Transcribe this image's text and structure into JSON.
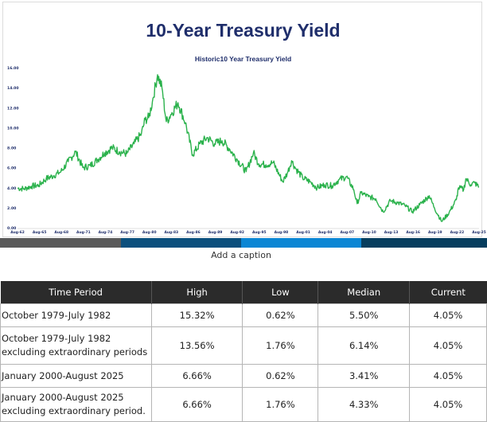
{
  "chart_data": {
    "type": "line",
    "title": "10-Year Treasury Yield",
    "subtitle": "Historic10 Year Treasury Yield",
    "yticks": [
      "0.00",
      "2.00",
      "4.00",
      "6.00",
      "8.00",
      "10.00",
      "12.00",
      "14.00",
      "16.00"
    ],
    "ylim": [
      0,
      16
    ],
    "xticks": [
      "Aug-62",
      "Aug-65",
      "Aug-68",
      "Aug-71",
      "Aug-74",
      "Aug-77",
      "Aug-80",
      "Aug-83",
      "Aug-86",
      "Aug-89",
      "Aug-92",
      "Aug-95",
      "Aug-98",
      "Aug-01",
      "Aug-04",
      "Aug-07",
      "Aug-10",
      "Aug-13",
      "Aug-16",
      "Aug-19",
      "Aug-22",
      "Aug-25"
    ],
    "xlim": [
      1962.58,
      2025.6
    ],
    "grid": false,
    "legend": "none",
    "line_color": "#2bb24c",
    "series": [
      {
        "x": [
          1962.58,
          1963.5,
          1964.5,
          1965.5,
          1966.5,
          1967.5,
          1968.5,
          1969.5,
          1970.5,
          1971.5,
          1972.5,
          1973.5,
          1974.5,
          1975.5,
          1976.5,
          1977.5,
          1978.5,
          1979.5,
          1980.0,
          1980.5,
          1981.0,
          1981.7,
          1982.3,
          1982.9,
          1983.5,
          1984.5,
          1985.5,
          1986.5,
          1987.5,
          1988.5,
          1989.5,
          1990.5,
          1991.5,
          1992.5,
          1993.8,
          1994.8,
          1995.5,
          1996.5,
          1997.5,
          1998.8,
          1999.5,
          2000.0,
          2000.5,
          2001.5,
          2002.5,
          2003.5,
          2004.5,
          2005.5,
          2006.5,
          2007.5,
          2008.5,
          2008.95,
          2009.5,
          2010.5,
          2011.5,
          2012.5,
          2013.5,
          2014.5,
          2015.5,
          2016.5,
          2017.5,
          2018.8,
          2019.5,
          2020.5,
          2021.5,
          2022.5,
          2022.8,
          2023.5,
          2023.8,
          2024.5,
          2025.0,
          2025.6
        ],
        "y": [
          3.95,
          3.9,
          4.15,
          4.25,
          4.9,
          5.2,
          5.6,
          6.6,
          7.6,
          6.0,
          6.2,
          6.8,
          7.5,
          8.0,
          7.6,
          7.4,
          8.4,
          9.4,
          10.8,
          11.0,
          12.6,
          15.3,
          14.0,
          10.6,
          11.3,
          12.5,
          10.5,
          7.3,
          8.4,
          9.0,
          8.4,
          8.7,
          7.9,
          6.9,
          5.6,
          7.5,
          6.4,
          6.3,
          6.5,
          4.6,
          5.6,
          6.7,
          6.0,
          5.0,
          4.6,
          4.0,
          4.3,
          4.2,
          4.8,
          5.1,
          3.8,
          2.4,
          3.5,
          3.1,
          2.9,
          1.6,
          2.7,
          2.5,
          2.2,
          1.6,
          2.3,
          3.2,
          2.0,
          0.62,
          1.5,
          2.8,
          4.0,
          3.8,
          4.9,
          4.3,
          4.5,
          4.05
        ]
      }
    ]
  },
  "color_bar": [
    {
      "label": "",
      "color": "#5a5a5a"
    },
    {
      "label": "",
      "color": "#0b4f7d"
    },
    {
      "label": "",
      "color": "#0b86d4"
    },
    {
      "label": "",
      "color": "#063d5e"
    }
  ],
  "caption": "Add a caption",
  "table": {
    "headers": [
      "Time Period",
      "High",
      "Low",
      "Median",
      "Current"
    ],
    "rows": [
      {
        "period": "October 1979-July 1982",
        "period_line2": "",
        "high": "15.32%",
        "low": "0.62%",
        "median": "5.50%",
        "current": "4.05%"
      },
      {
        "period": "October 1979-July 1982",
        "period_line2": "excluding extraordinary periods",
        "high": "13.56%",
        "low": "1.76%",
        "median": "6.14%",
        "current": "4.05%"
      },
      {
        "period": "January 2000-August 2025",
        "period_line2": "",
        "high": "6.66%",
        "low": "0.62%",
        "median": "3.41%",
        "current": "4.05%"
      },
      {
        "period": "January 2000-August 2025",
        "period_line2": "excluding extraordinary period.",
        "high": "6.66%",
        "low": "1.76%",
        "median": "4.33%",
        "current": "4.05%"
      }
    ]
  }
}
